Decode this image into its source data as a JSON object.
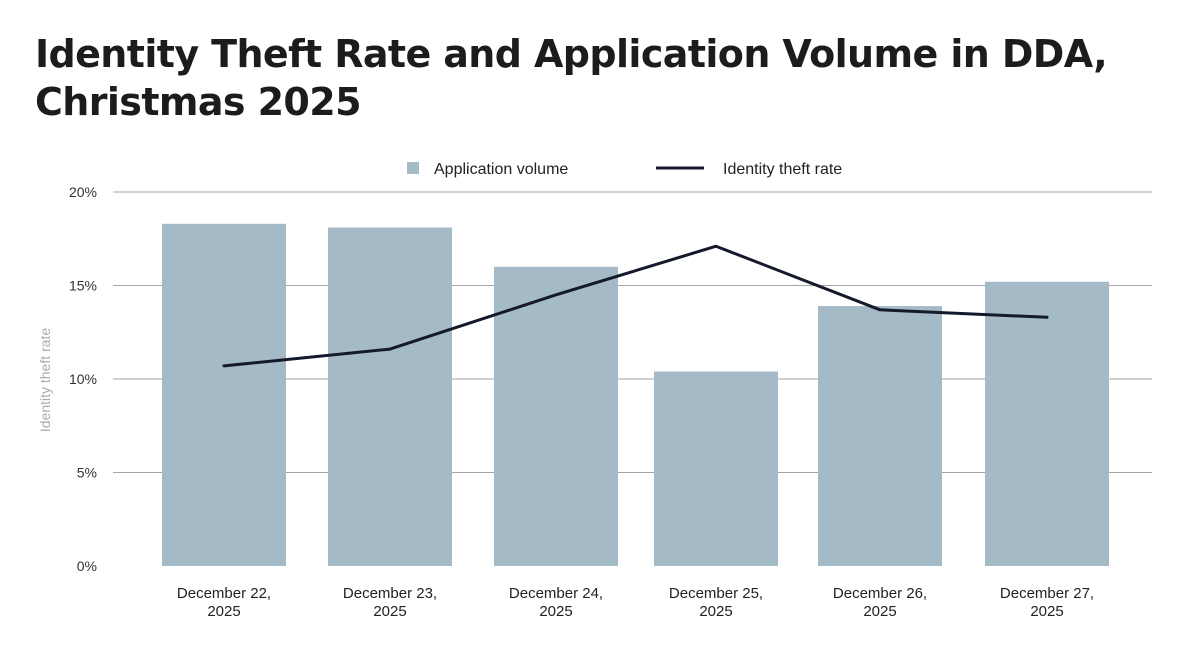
{
  "chart_data": {
    "type": "bar",
    "title": "Identity Theft Rate and Application Volume in DDA, Christmas 2025",
    "categories": [
      [
        "December 22,",
        "2025"
      ],
      [
        "December 23,",
        "2025"
      ],
      [
        "December 24,",
        "2025"
      ],
      [
        "December 25,",
        "2025"
      ],
      [
        "December 26,",
        "2025"
      ],
      [
        "December 27,",
        "2025"
      ]
    ],
    "series": [
      {
        "name": "Application volume",
        "kind": "bar",
        "color": "#a5bac7",
        "values": [
          18.3,
          18.1,
          16.0,
          10.4,
          13.9,
          15.2
        ]
      },
      {
        "name": "Identity theft rate",
        "kind": "line",
        "color": "#141a2b",
        "values": [
          10.7,
          11.6,
          14.5,
          17.1,
          13.7,
          13.3
        ]
      }
    ],
    "ylabel": "Identity theft rate",
    "ylim": [
      0,
      20
    ],
    "yticks": [
      0,
      5,
      10,
      15,
      20
    ],
    "ytick_labels": [
      "0%",
      "5%",
      "10%",
      "15%",
      "20%"
    ],
    "grid": true,
    "legend_position": "top-center",
    "gridline_color": "#a6a6a6"
  }
}
